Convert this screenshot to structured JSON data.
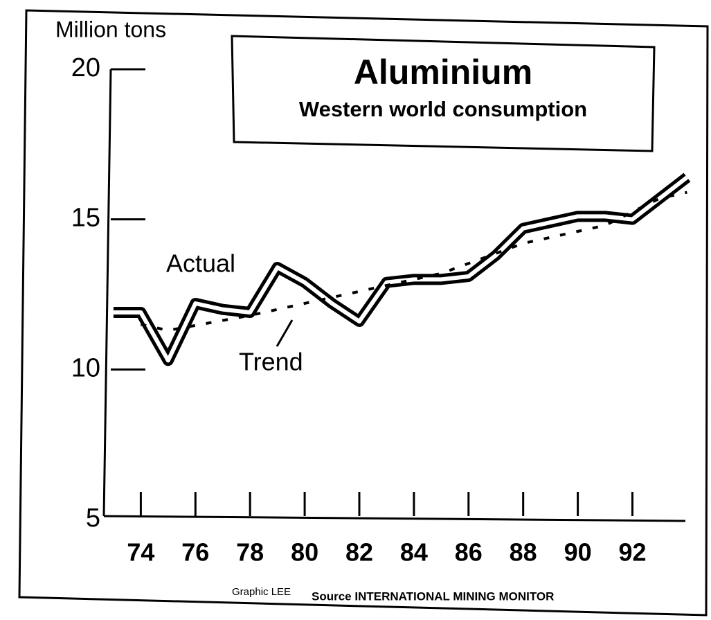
{
  "chart_data": {
    "type": "line",
    "title": "Aluminium",
    "subtitle": "Western world consumption",
    "ylabel": "Million tons",
    "annotations": [
      "Actual",
      "Trend"
    ],
    "source": [
      "Graphic LEE",
      "Source INTERNATIONAL MINING MONITOR"
    ],
    "xlim": [
      72.9,
      94.7
    ],
    "xticks": [
      74,
      76,
      78,
      80,
      82,
      84,
      86,
      88,
      90,
      92
    ],
    "ylim": [
      5,
      20
    ],
    "yticks": [
      5,
      10,
      15,
      20
    ],
    "series": [
      {
        "name": "Actual",
        "color": "#000000",
        "style": "double",
        "x": [
          73,
          74,
          75,
          76,
          77,
          78,
          79,
          80,
          81,
          82,
          83,
          84,
          85,
          86,
          87,
          88,
          89,
          90,
          91,
          92,
          93,
          94
        ],
        "values": [
          11.9,
          11.9,
          10.3,
          12.2,
          12.0,
          11.9,
          13.4,
          12.9,
          12.2,
          11.6,
          12.9,
          13.0,
          13.0,
          13.1,
          13.8,
          14.7,
          14.9,
          15.1,
          15.1,
          15.0,
          15.7,
          16.4
        ]
      },
      {
        "name": "Trend",
        "color": "#000000",
        "style": "dotted",
        "x": [
          74,
          75,
          78,
          83,
          85,
          88,
          90,
          91,
          93,
          94
        ],
        "values": [
          11.5,
          11.3,
          11.8,
          12.8,
          13.2,
          14.2,
          14.6,
          14.8,
          15.7,
          15.9
        ]
      }
    ]
  }
}
